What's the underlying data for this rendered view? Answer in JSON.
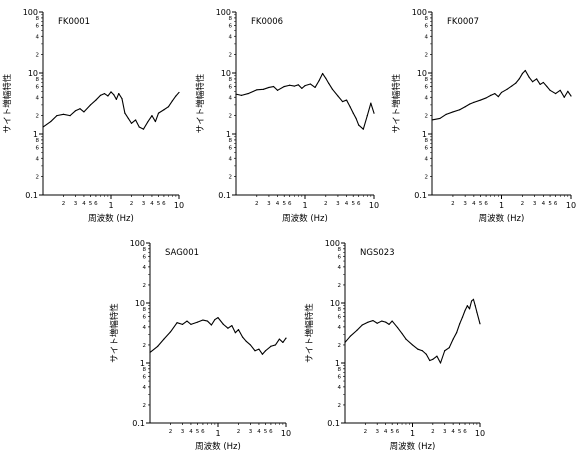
{
  "chart_data": [
    {
      "type": "line",
      "title": "FK0001",
      "xlabel": "周波数 (Hz)",
      "ylabel": "サイト増幅特性",
      "x_scale": "log",
      "y_scale": "log",
      "xlim": [
        0.1,
        10
      ],
      "ylim": [
        0.1,
        100
      ],
      "x": [
        0.1,
        0.13,
        0.16,
        0.2,
        0.25,
        0.3,
        0.35,
        0.4,
        0.5,
        0.6,
        0.7,
        0.8,
        0.9,
        1.0,
        1.1,
        1.2,
        1.3,
        1.45,
        1.6,
        1.8,
        2.0,
        2.3,
        2.6,
        3.0,
        3.5,
        4.0,
        4.5,
        5.0,
        6.0,
        7.0,
        8.0,
        9.0,
        10.0
      ],
      "values": [
        1.3,
        1.6,
        2.0,
        2.1,
        2.0,
        2.4,
        2.6,
        2.3,
        3.0,
        3.6,
        4.3,
        4.6,
        4.2,
        4.9,
        4.4,
        3.7,
        4.6,
        3.8,
        2.2,
        1.8,
        1.5,
        1.7,
        1.3,
        1.2,
        1.6,
        2.0,
        1.6,
        2.2,
        2.5,
        2.8,
        3.5,
        4.2,
        4.8
      ]
    },
    {
      "type": "line",
      "title": "FK0006",
      "xlabel": "周波数 (Hz)",
      "ylabel": "サイト増幅特性",
      "x_scale": "log",
      "y_scale": "log",
      "xlim": [
        0.1,
        10
      ],
      "ylim": [
        0.1,
        100
      ],
      "x": [
        0.1,
        0.12,
        0.15,
        0.2,
        0.25,
        0.3,
        0.35,
        0.4,
        0.5,
        0.6,
        0.7,
        0.8,
        0.9,
        1.0,
        1.2,
        1.4,
        1.6,
        1.8,
        2.0,
        2.2,
        2.5,
        3.0,
        3.5,
        4.0,
        4.5,
        5.0,
        5.5,
        6.0,
        7.0,
        8.0,
        9.0,
        10.0
      ],
      "values": [
        4.5,
        4.3,
        4.6,
        5.3,
        5.4,
        5.8,
        6.0,
        5.2,
        6.0,
        6.3,
        6.1,
        6.4,
        5.6,
        6.2,
        6.6,
        5.8,
        7.5,
        9.8,
        8.2,
        6.8,
        5.4,
        4.2,
        3.4,
        3.6,
        2.8,
        2.2,
        1.8,
        1.4,
        1.2,
        2.0,
        3.2,
        2.2
      ]
    },
    {
      "type": "line",
      "title": "FK0007",
      "xlabel": "周波数 (Hz)",
      "ylabel": "サイト増幅特性",
      "x_scale": "log",
      "y_scale": "log",
      "xlim": [
        0.1,
        10
      ],
      "ylim": [
        0.1,
        100
      ],
      "x": [
        0.1,
        0.13,
        0.16,
        0.2,
        0.25,
        0.3,
        0.35,
        0.4,
        0.5,
        0.6,
        0.7,
        0.8,
        0.9,
        1.0,
        1.2,
        1.4,
        1.6,
        1.8,
        2.0,
        2.2,
        2.5,
        2.8,
        3.2,
        3.6,
        4.0,
        4.5,
        5.0,
        6.0,
        7.0,
        8.0,
        9.0,
        10.0
      ],
      "values": [
        1.7,
        1.8,
        2.1,
        2.3,
        2.5,
        2.8,
        3.1,
        3.3,
        3.6,
        3.9,
        4.3,
        4.6,
        4.1,
        4.8,
        5.4,
        6.1,
        6.8,
        8.0,
        9.8,
        11.0,
        8.5,
        7.2,
        8.0,
        6.5,
        7.0,
        6.0,
        5.2,
        4.6,
        5.2,
        4.0,
        5.0,
        4.2
      ]
    },
    {
      "type": "line",
      "title": "SAG001",
      "xlabel": "周波数 (Hz)",
      "ylabel": "サイト増幅特性",
      "x_scale": "log",
      "y_scale": "log",
      "xlim": [
        0.1,
        10
      ],
      "ylim": [
        0.1,
        100
      ],
      "x": [
        0.1,
        0.13,
        0.16,
        0.2,
        0.25,
        0.3,
        0.35,
        0.4,
        0.5,
        0.6,
        0.7,
        0.8,
        0.9,
        1.0,
        1.2,
        1.4,
        1.6,
        1.8,
        2.0,
        2.3,
        2.6,
        3.0,
        3.5,
        4.0,
        4.5,
        5.0,
        6.0,
        7.0,
        8.0,
        9.0,
        10.0
      ],
      "values": [
        1.5,
        1.9,
        2.5,
        3.3,
        4.7,
        4.4,
        5.0,
        4.4,
        4.8,
        5.2,
        5.0,
        4.3,
        5.3,
        5.7,
        4.4,
        3.8,
        4.2,
        3.2,
        3.6,
        2.7,
        2.3,
        2.0,
        1.6,
        1.7,
        1.4,
        1.6,
        1.9,
        2.0,
        2.5,
        2.2,
        2.6
      ]
    },
    {
      "type": "line",
      "title": "NGS023",
      "xlabel": "周波数 (Hz)",
      "ylabel": "サイト増幅特性",
      "x_scale": "log",
      "y_scale": "log",
      "xlim": [
        0.1,
        10
      ],
      "ylim": [
        0.1,
        100
      ],
      "x": [
        0.1,
        0.12,
        0.15,
        0.18,
        0.22,
        0.26,
        0.3,
        0.35,
        0.4,
        0.45,
        0.5,
        0.6,
        0.7,
        0.8,
        1.0,
        1.2,
        1.4,
        1.6,
        1.8,
        2.0,
        2.3,
        2.6,
        3.0,
        3.5,
        4.0,
        4.5,
        5.0,
        5.5,
        6.0,
        6.5,
        7.0,
        7.5,
        8.0,
        8.5,
        9.0,
        10.0
      ],
      "values": [
        2.2,
        2.8,
        3.5,
        4.3,
        4.8,
        5.1,
        4.6,
        5.0,
        4.8,
        4.4,
        5.0,
        3.9,
        3.1,
        2.5,
        2.0,
        1.7,
        1.6,
        1.4,
        1.1,
        1.15,
        1.3,
        1.0,
        1.6,
        1.8,
        2.5,
        3.2,
        4.5,
        5.8,
        7.5,
        9.0,
        8.0,
        10.8,
        11.5,
        9.0,
        7.0,
        4.5
      ]
    }
  ],
  "axis_labels": {
    "y_major": [
      "100",
      "10",
      "1",
      "0.1"
    ],
    "y_minor": [
      "8",
      "6",
      "4",
      "2"
    ],
    "x_ticks": [
      "2",
      "3",
      "4",
      "5",
      "6",
      "1",
      "2",
      "3",
      "4",
      "5",
      "6",
      "10"
    ]
  }
}
